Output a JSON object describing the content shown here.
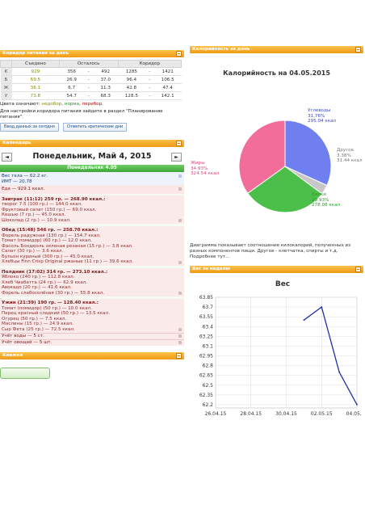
{
  "corridor": {
    "title": "Коридор питания за день",
    "headers": [
      "Съедено",
      "Осталось",
      "Коридор"
    ],
    "rows": [
      {
        "label": "К",
        "eaten": "929",
        "r1": "356",
        "r2": "492",
        "c1": "1285",
        "c2": "1421"
      },
      {
        "label": "Б",
        "eaten": "69.5",
        "r1": "26.9",
        "r2": "37.0",
        "c1": "96.4",
        "c2": "106.5"
      },
      {
        "label": "Ж",
        "eaten": "36.1",
        "r1": "6.7",
        "r2": "11.3",
        "c1": "42.8",
        "c2": "47.4"
      },
      {
        "label": "У",
        "eaten": "73.8",
        "r1": "54.7",
        "r2": "68.3",
        "c1": "128.5",
        "c2": "142.1"
      }
    ],
    "dash": "-",
    "colors_prefix": "Цвета означают:",
    "low": "недобор",
    "norm": "норма",
    "over": "перебор",
    "hint": "Для настройки коридора питания зайдите в раздел \"Планирование питания\".",
    "btn_today": "Ввод данных за сегодня",
    "btn_critical": "Отметить критические дни"
  },
  "calendar": {
    "title": "Календарь",
    "prev": "◄",
    "next": "►",
    "date": "Понедельник, Май 4, 2015",
    "dayhead": "Понедельник 4.05",
    "weight_line": "Вес тела — 62.2 кг.",
    "imt_line": "ИМТ — 20.78",
    "food_line": "Еда — 929.1 ккал.",
    "meals": [
      {
        "title": "Завтрак (11:12) 259 гр. — 268.90 ккал.:",
        "items": [
          "творог 7.5 (100 гр.) — 144.0 ккал.",
          "Фруктовый салат (150 гр.) — 69.0 ккал.",
          "Кешью (7 гр.) — 45.0 ккал.",
          "Шоколад (2 гр.) — 10.9 ккал."
        ]
      },
      {
        "title": "Обед (15:48) 546 гр. — 258.70 ккал.:",
        "items": [
          "Форель радужная (130 гр.) — 154.7 ккал.",
          "Томат (помидор) (60 гр.) — 12.0 ккал.",
          "Фасоль Бондюэль зеленая резаная (15 гр.) — 3.8 ккал.",
          "Салат (30 гр.) — 3.6 ккал.",
          "Бульон куриный (300 гр.) — 45.0 ккал.",
          "Хлебцы Finn Crisp Original ржаные (11 гр.) — 39.6 ккал."
        ]
      },
      {
        "title": "Полдник (17:02) 314 гр. — 273.10 ккал.:",
        "items": [
          "Яблоко (240 гр.) — 112.8 ккал.",
          "Хлеб Чиабатта (24 гр.) — 62.9 ккал.",
          "Авокадо (20 гр.) — 41.6 ккал.",
          "Форель слабосолёная (30 гр.) — 55.8 ккал."
        ]
      },
      {
        "title": "Ужин (21:39) 190 гр. — 128.40 ккал.:",
        "items": [
          "Томат (помидор) (50 гр.) — 10.0 ккал.",
          "Перец красный сладкий (50 гр.) — 13.5 ккал.",
          "Огурец (50 гр.) — 7.5 ккал.",
          "Маслины (15 гр.) — 24.9 ккал.",
          "Сыр Фета (25 гр.) — 72.5 ккал."
        ]
      }
    ],
    "water": "Учёт воды — 5 ст.",
    "veg": "Учёт овощей — 5 шт."
  },
  "books": {
    "title": "Книжки"
  },
  "calories": {
    "title": "Калорийность за день",
    "chart_title": "Калорийность на 04.05.2015",
    "note": "Диаграмма показывает соотношение килокалорий, полученных из разных компонентов пищи. Другое - клетчатка, спирты и т.д. Подробнее тут..."
  },
  "weight_panel": {
    "title": "Вес за неделю"
  },
  "chart_data": [
    {
      "type": "pie",
      "title": "Калорийность на 04.05.2015",
      "slices": [
        {
          "name": "Углеводы",
          "percent": "31.76%",
          "kcal": "295.04 ккал",
          "value": 31.76,
          "color": "#6f7ff0"
        },
        {
          "name": "Другое",
          "percent": "3.38%",
          "kcal": "31.44 ккал",
          "value": 3.38,
          "color": "#c8c8c8"
        },
        {
          "name": "Белки",
          "percent": "29.93%",
          "kcal": "278.08 ккал",
          "value": 29.93,
          "color": "#4cbf4a"
        },
        {
          "name": "Жиры",
          "percent": "34.93%",
          "kcal": "324.54 ккал",
          "value": 34.93,
          "color": "#f26d9a"
        }
      ]
    },
    {
      "type": "line",
      "title": "Вес",
      "x_labels": [
        "26.04.15",
        "28.04.15",
        "30.04.15",
        "02.05.15",
        "04.05.15"
      ],
      "x_range": [
        "2015-04-26",
        "2015-05-04"
      ],
      "y_ticks": [
        "63.85",
        "63.7",
        "63.55",
        "63.4",
        "63.25",
        "63.1",
        "62.95",
        "62.8",
        "62.65",
        "62.5",
        "62.35",
        "62.2"
      ],
      "ylim": [
        62.15,
        63.85
      ],
      "grid": true,
      "color": "#1f2fa8",
      "points": [
        {
          "x": "2015-05-01",
          "y": 63.5
        },
        {
          "x": "2015-05-02",
          "y": 63.7
        },
        {
          "x": "2015-05-03",
          "y": 62.7
        },
        {
          "x": "2015-05-04",
          "y": 62.2
        }
      ]
    }
  ]
}
